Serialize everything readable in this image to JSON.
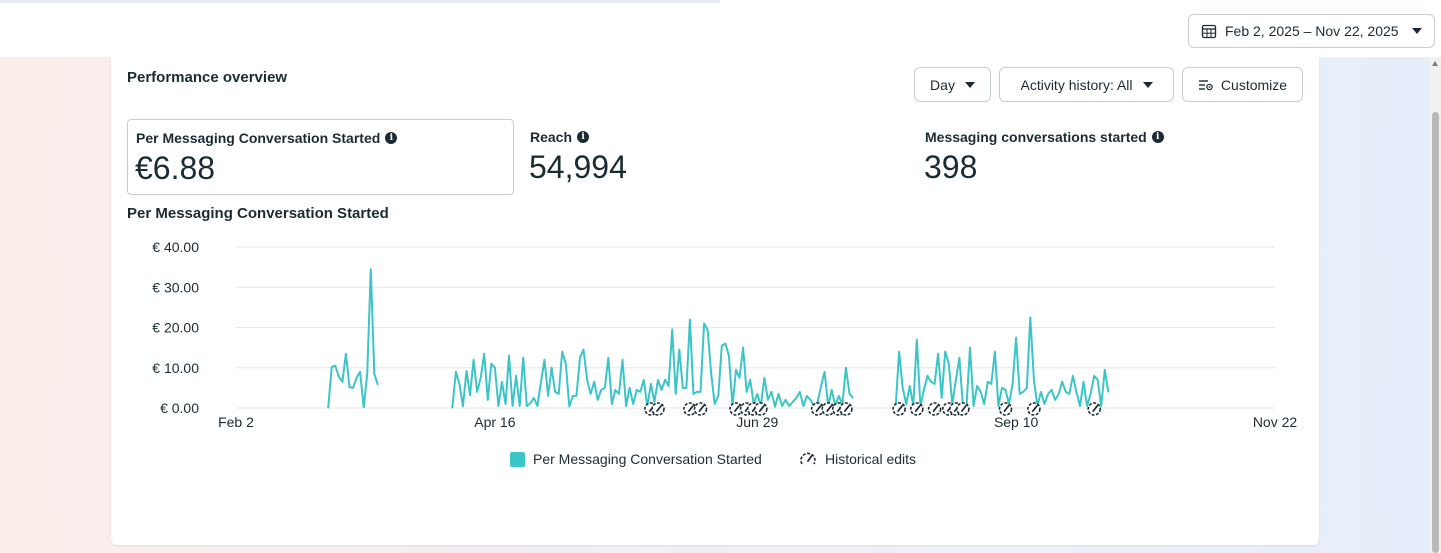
{
  "header": {
    "date_range": "Feb 2, 2025 – Nov 22, 2025"
  },
  "overview": {
    "title": "Performance overview",
    "granularity": "Day",
    "activity_history": "Activity history: All",
    "customize": "Customize"
  },
  "metrics": [
    {
      "label": "Per Messaging Conversation Started",
      "value": "€6.88",
      "selected": true
    },
    {
      "label": "Reach",
      "value": "54,994",
      "selected": false
    },
    {
      "label": "Messaging conversations started",
      "value": "398",
      "selected": false
    }
  ],
  "legend": {
    "series": "Per Messaging Conversation Started",
    "edits": "Historical edits"
  },
  "colors": {
    "series": "#3cc5c6",
    "text": "#1c2b33",
    "grid": "#e4e6eb"
  },
  "icons": {
    "calendar": "calendar-icon",
    "customize": "customize-icon",
    "info": "info-icon",
    "edit_marker": "gauge-edit-icon"
  },
  "chart_data": {
    "type": "line",
    "title": "Per Messaging Conversation Started",
    "y_ticks": [
      "€ 0.00",
      "€ 10.00",
      "€ 20.00",
      "€ 30.00",
      "€ 40.00"
    ],
    "ylim": [
      0,
      40
    ],
    "x_tick_labels": [
      "Feb 2",
      "Apr 16",
      "Jun 29",
      "Sep 10",
      "Nov 22"
    ],
    "x_tick_dates": [
      "2025-02-02",
      "2025-04-16",
      "2025-06-29",
      "2025-09-10",
      "2025-11-22"
    ],
    "xlim": [
      "2025-02-02",
      "2025-11-22"
    ],
    "grid": true,
    "series": [
      {
        "name": "Per Messaging Conversation Started",
        "segments": [
          [
            [
              "2025-02-28",
              0
            ],
            [
              "2025-03-01",
              10.2
            ],
            [
              "2025-03-02",
              10.5
            ],
            [
              "2025-03-03",
              7.8
            ],
            [
              "2025-03-04",
              6.5
            ],
            [
              "2025-03-05",
              13.5
            ],
            [
              "2025-03-06",
              5.2
            ],
            [
              "2025-03-07",
              5.0
            ],
            [
              "2025-03-08",
              7.5
            ],
            [
              "2025-03-09",
              9.0
            ],
            [
              "2025-03-10",
              0.2
            ],
            [
              "2025-03-11",
              8.5
            ],
            [
              "2025-03-12",
              34.5
            ],
            [
              "2025-03-13",
              8.5
            ],
            [
              "2025-03-14",
              5.8
            ]
          ],
          [
            [
              "2025-04-04",
              0
            ],
            [
              "2025-04-05",
              9.0
            ],
            [
              "2025-04-06",
              6.0
            ],
            [
              "2025-04-07",
              0.4
            ],
            [
              "2025-04-08",
              9.2
            ],
            [
              "2025-04-09",
              3.2
            ],
            [
              "2025-04-10",
              12.0
            ],
            [
              "2025-04-11",
              4.0
            ],
            [
              "2025-04-12",
              7.5
            ],
            [
              "2025-04-13",
              13.5
            ],
            [
              "2025-04-14",
              2.0
            ],
            [
              "2025-04-15",
              11.0
            ],
            [
              "2025-04-16",
              10.0
            ],
            [
              "2025-04-17",
              0.5
            ],
            [
              "2025-04-18",
              6.5
            ],
            [
              "2025-04-19",
              1.0
            ],
            [
              "2025-04-20",
              13.0
            ],
            [
              "2025-04-21",
              0.5
            ],
            [
              "2025-04-22",
              8.0
            ],
            [
              "2025-04-23",
              0.5
            ],
            [
              "2025-04-24",
              12.5
            ],
            [
              "2025-04-25",
              0.5
            ],
            [
              "2025-04-26",
              1.2
            ],
            [
              "2025-04-27",
              2.5
            ],
            [
              "2025-04-28",
              0.5
            ],
            [
              "2025-04-29",
              6.5
            ],
            [
              "2025-04-30",
              12.0
            ],
            [
              "2025-05-01",
              3.0
            ],
            [
              "2025-05-02",
              10.0
            ],
            [
              "2025-05-03",
              4.0
            ],
            [
              "2025-05-04",
              3.5
            ],
            [
              "2025-05-05",
              14.0
            ],
            [
              "2025-05-06",
              11.0
            ],
            [
              "2025-05-07",
              0.4
            ],
            [
              "2025-05-08",
              3.0
            ],
            [
              "2025-05-09",
              3.0
            ],
            [
              "2025-05-10",
              12.5
            ],
            [
              "2025-05-11",
              14.5
            ],
            [
              "2025-05-12",
              7.0
            ],
            [
              "2025-05-13",
              3.5
            ],
            [
              "2025-05-14",
              6.5
            ],
            [
              "2025-05-15",
              2.0
            ],
            [
              "2025-05-16",
              4.5
            ],
            [
              "2025-05-17",
              5.0
            ],
            [
              "2025-05-18",
              12.5
            ],
            [
              "2025-05-19",
              1.0
            ],
            [
              "2025-05-20",
              4.5
            ],
            [
              "2025-05-21",
              3.5
            ],
            [
              "2025-05-22",
              12.0
            ],
            [
              "2025-05-23",
              0.5
            ],
            [
              "2025-05-24",
              5.0
            ],
            [
              "2025-05-25",
              1.0
            ],
            [
              "2025-05-26",
              4.5
            ],
            [
              "2025-05-27",
              4.0
            ],
            [
              "2025-05-28",
              7.0
            ],
            [
              "2025-05-29",
              0.3
            ],
            [
              "2025-05-30",
              6.0
            ],
            [
              "2025-05-31",
              1.5
            ],
            [
              "2025-06-01",
              7.0
            ],
            [
              "2025-06-02",
              4.5
            ],
            [
              "2025-06-03",
              7.0
            ],
            [
              "2025-06-04",
              5.5
            ],
            [
              "2025-06-05",
              19.5
            ],
            [
              "2025-06-06",
              3.5
            ],
            [
              "2025-06-07",
              14.5
            ],
            [
              "2025-06-08",
              5.0
            ],
            [
              "2025-06-09",
              5.0
            ],
            [
              "2025-06-10",
              22.0
            ],
            [
              "2025-06-11",
              3.5
            ],
            [
              "2025-06-12",
              4.0
            ],
            [
              "2025-06-13",
              4.0
            ],
            [
              "2025-06-14",
              21.0
            ],
            [
              "2025-06-15",
              19.5
            ],
            [
              "2025-06-16",
              8.5
            ],
            [
              "2025-06-17",
              1.0
            ],
            [
              "2025-06-18",
              3.0
            ],
            [
              "2025-06-19",
              15.5
            ],
            [
              "2025-06-20",
              16.0
            ],
            [
              "2025-06-21",
              13.0
            ],
            [
              "2025-06-22",
              0.5
            ],
            [
              "2025-06-23",
              9.5
            ],
            [
              "2025-06-24",
              7.5
            ],
            [
              "2025-06-25",
              15.0
            ],
            [
              "2025-06-26",
              4.0
            ],
            [
              "2025-06-27",
              7.0
            ],
            [
              "2025-06-28",
              1.0
            ],
            [
              "2025-06-29",
              3.5
            ],
            [
              "2025-06-30",
              0.5
            ],
            [
              "2025-07-01",
              7.5
            ],
            [
              "2025-07-02",
              2.0
            ],
            [
              "2025-07-03",
              4.0
            ],
            [
              "2025-07-04",
              0.3
            ],
            [
              "2025-07-05",
              3.5
            ],
            [
              "2025-07-06",
              0.5
            ],
            [
              "2025-07-07",
              2.0
            ],
            [
              "2025-07-08",
              0.5
            ],
            [
              "2025-07-09",
              1.5
            ],
            [
              "2025-07-10",
              2.5
            ],
            [
              "2025-07-11",
              4.0
            ],
            [
              "2025-07-12",
              0.5
            ],
            [
              "2025-07-13",
              3.0
            ],
            [
              "2025-07-14",
              2.0
            ],
            [
              "2025-07-15",
              0.5
            ],
            [
              "2025-07-16",
              1.5
            ],
            [
              "2025-07-17",
              5.5
            ],
            [
              "2025-07-18",
              9.0
            ],
            [
              "2025-07-19",
              0.5
            ],
            [
              "2025-07-20",
              4.5
            ],
            [
              "2025-07-21",
              0.5
            ],
            [
              "2025-07-22",
              3.0
            ],
            [
              "2025-07-23",
              1.0
            ],
            [
              "2025-07-24",
              10.0
            ],
            [
              "2025-07-25",
              3.5
            ],
            [
              "2025-07-26",
              2.5
            ]
          ],
          [
            [
              "2025-08-07",
              0
            ],
            [
              "2025-08-08",
              14.0
            ],
            [
              "2025-08-09",
              5.0
            ],
            [
              "2025-08-10",
              1.0
            ],
            [
              "2025-08-11",
              5.5
            ],
            [
              "2025-08-12",
              0.5
            ],
            [
              "2025-08-13",
              17.0
            ],
            [
              "2025-08-14",
              0.5
            ],
            [
              "2025-08-15",
              4.5
            ],
            [
              "2025-08-16",
              8.0
            ],
            [
              "2025-08-17",
              6.5
            ],
            [
              "2025-08-18",
              6.0
            ],
            [
              "2025-08-19",
              13.5
            ],
            [
              "2025-08-20",
              2.5
            ],
            [
              "2025-08-21",
              14.0
            ],
            [
              "2025-08-22",
              11.0
            ],
            [
              "2025-08-23",
              1.0
            ],
            [
              "2025-08-24",
              7.0
            ],
            [
              "2025-08-25",
              12.5
            ],
            [
              "2025-08-26",
              0.5
            ],
            [
              "2025-08-27",
              0.5
            ],
            [
              "2025-08-28",
              15.0
            ],
            [
              "2025-08-29",
              0.5
            ],
            [
              "2025-08-30",
              5.5
            ],
            [
              "2025-08-31",
              4.0
            ],
            [
              "2025-09-01",
              1.0
            ],
            [
              "2025-09-02",
              6.5
            ],
            [
              "2025-09-03",
              6.0
            ],
            [
              "2025-09-04",
              14.0
            ],
            [
              "2025-09-05",
              0.5
            ],
            [
              "2025-09-06",
              5.0
            ],
            [
              "2025-09-07",
              4.5
            ],
            [
              "2025-09-08",
              1.0
            ],
            [
              "2025-09-09",
              6.0
            ],
            [
              "2025-09-10",
              17.5
            ],
            [
              "2025-09-11",
              3.5
            ],
            [
              "2025-09-12",
              4.0
            ],
            [
              "2025-09-13",
              5.0
            ],
            [
              "2025-09-14",
              22.5
            ],
            [
              "2025-09-15",
              7.0
            ],
            [
              "2025-09-16",
              0.5
            ],
            [
              "2025-09-17",
              4.0
            ],
            [
              "2025-09-18",
              1.0
            ],
            [
              "2025-09-19",
              3.5
            ],
            [
              "2025-09-20",
              4.5
            ],
            [
              "2025-09-21",
              2.0
            ],
            [
              "2025-09-22",
              3.5
            ],
            [
              "2025-09-23",
              6.5
            ],
            [
              "2025-09-24",
              4.0
            ],
            [
              "2025-09-25",
              3.5
            ],
            [
              "2025-09-26",
              8.0
            ],
            [
              "2025-09-27",
              4.0
            ],
            [
              "2025-09-28",
              0.5
            ],
            [
              "2025-09-29",
              6.5
            ],
            [
              "2025-09-30",
              0.5
            ],
            [
              "2025-10-01",
              3.5
            ],
            [
              "2025-10-02",
              8.0
            ],
            [
              "2025-10-03",
              7.0
            ],
            [
              "2025-10-04",
              0.5
            ],
            [
              "2025-10-05",
              9.5
            ],
            [
              "2025-10-06",
              4.0
            ]
          ]
        ]
      }
    ],
    "historical_edit_dates": [
      "2025-05-30",
      "2025-06-01",
      "2025-06-10",
      "2025-06-13",
      "2025-06-23",
      "2025-06-26",
      "2025-06-28",
      "2025-06-30",
      "2025-07-16",
      "2025-07-19",
      "2025-07-22",
      "2025-07-24",
      "2025-08-08",
      "2025-08-13",
      "2025-08-18",
      "2025-08-22",
      "2025-08-24",
      "2025-08-26",
      "2025-09-07",
      "2025-09-15",
      "2025-10-02"
    ],
    "legend": [
      "Per Messaging Conversation Started",
      "Historical edits"
    ]
  }
}
